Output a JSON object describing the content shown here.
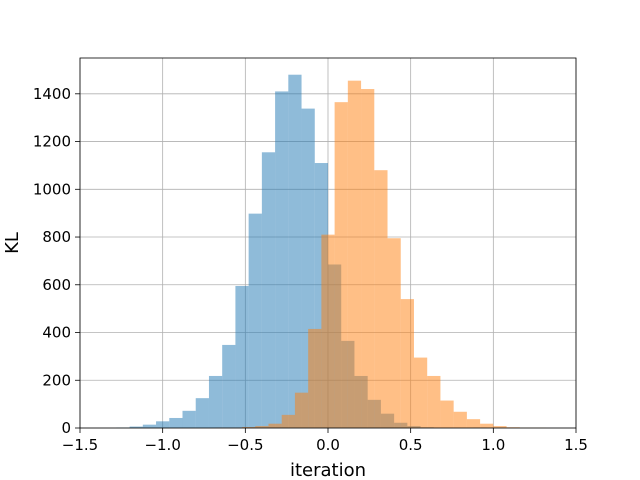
{
  "chart_data": {
    "type": "histogram",
    "title": "",
    "xlabel": "iteration",
    "ylabel": "KL",
    "xlim": [
      -1.5,
      1.5
    ],
    "ylim": [
      0,
      1550
    ],
    "xticks": [
      -1.5,
      -1.0,
      -0.5,
      0.0,
      0.5,
      1.0,
      1.5
    ],
    "xtick_labels": [
      "−1.5",
      "−1.0",
      "−0.5",
      "0.0",
      "0.5",
      "1.0",
      "1.5"
    ],
    "yticks": [
      0,
      200,
      400,
      600,
      800,
      1000,
      1200,
      1400
    ],
    "ytick_labels": [
      "0",
      "200",
      "400",
      "600",
      "800",
      "1000",
      "1200",
      "1400"
    ],
    "grid": true,
    "legend": false,
    "series": [
      {
        "color": "#1f77b4",
        "alpha": 0.5,
        "bin_start": -1.28,
        "bin_width": 0.08,
        "counts": [
          2,
          6,
          14,
          28,
          42,
          72,
          125,
          218,
          348,
          595,
          898,
          1155,
          1410,
          1480,
          1338,
          1110,
          685,
          365,
          218,
          118,
          60,
          22,
          8,
          3,
          1,
          1,
          0,
          1
        ]
      },
      {
        "color": "#ff7f0e",
        "alpha": 0.5,
        "bin_start": -0.68,
        "bin_width": 0.08,
        "counts": [
          1,
          1,
          4,
          8,
          18,
          55,
          148,
          415,
          810,
          1365,
          1455,
          1420,
          1080,
          795,
          540,
          295,
          218,
          115,
          68,
          37,
          18,
          8,
          3,
          1,
          1
        ]
      }
    ]
  }
}
